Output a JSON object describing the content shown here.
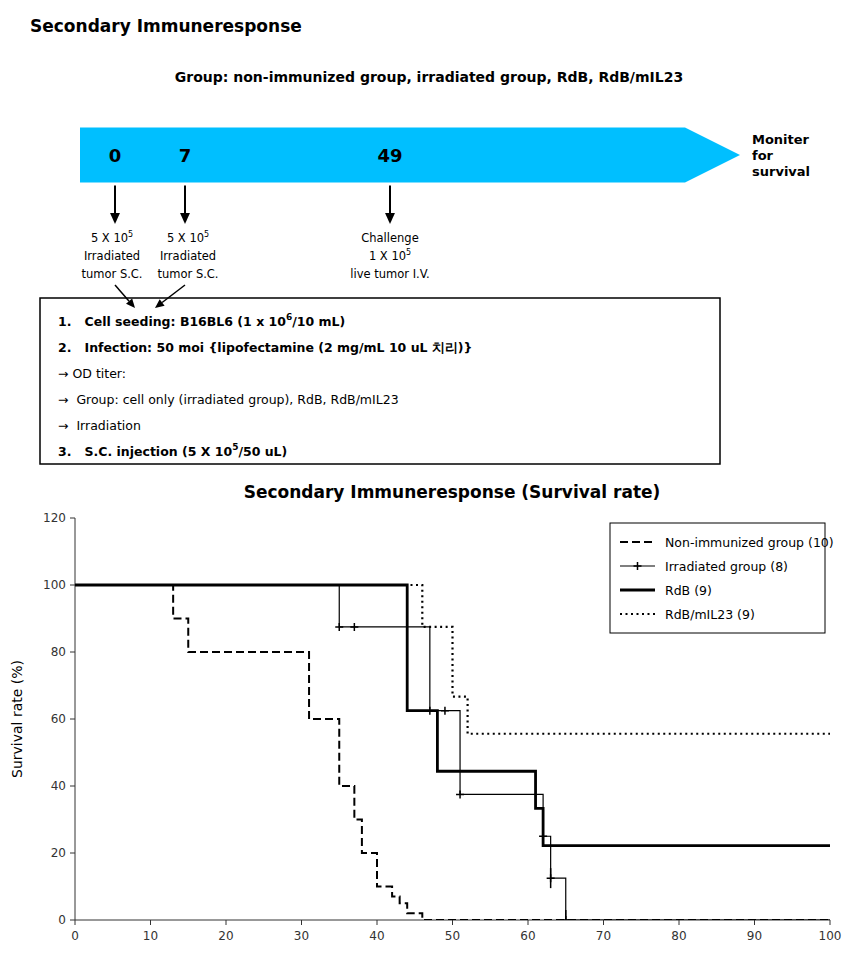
{
  "chart_data": {
    "type": "step",
    "title": "Secondary Immuneresponse (Survival rate)",
    "y_label": "Survival rate (%)",
    "color": "#00BFFF",
    "xlim": [
      0,
      100
    ],
    "ylim": [
      0,
      120
    ],
    "xticks": [
      0,
      10,
      20,
      30,
      40,
      50,
      60,
      70,
      80,
      90,
      100
    ],
    "yticks": [
      0,
      20,
      40,
      60,
      80,
      100,
      120
    ],
    "grid": false,
    "legend": "upper right",
    "series": [
      {
        "name": "Non-immunized group (10)",
        "color": "black",
        "line_style": "dashed",
        "x": [
          0,
          13,
          15,
          17,
          31,
          35,
          37,
          38,
          40,
          42,
          43,
          44,
          46,
          48,
          50,
          100
        ],
        "values": [
          100,
          90,
          80,
          80,
          60,
          40,
          30,
          20,
          10,
          7,
          5,
          2,
          0,
          0,
          0,
          0
        ]
      },
      {
        "name": "Irradiated group (8)",
        "color": "black",
        "line_style": "solid",
        "marker": "plus",
        "x": [
          0,
          35,
          37,
          47,
          49,
          51,
          62,
          63,
          65,
          100
        ],
        "values": [
          100,
          87.5,
          87.5,
          62.5,
          62.5,
          37.5,
          25,
          12.5,
          0,
          0
        ],
        "marker_x": [
          35,
          37,
          47,
          49,
          51,
          62,
          63,
          65
        ],
        "marker_values": [
          87.5,
          87.5,
          62.5,
          62.5,
          37.5,
          25,
          12.5,
          0
        ],
        "censor_x": [
          62,
          63,
          65
        ],
        "censor_values": [
          25,
          12.5,
          0
        ]
      },
      {
        "name": "RdB (9)",
        "color": "black",
        "line_style": "solid",
        "x": [
          0,
          44,
          48,
          50,
          61,
          62,
          65,
          100
        ],
        "values": [
          100,
          62.5,
          44.4,
          44.4,
          33.3,
          22.2,
          22.2,
          22.2
        ]
      },
      {
        "name": "RdB/mIL23 (9)",
        "color": "black",
        "line_style": "dotted",
        "x": [
          0,
          46,
          50,
          52,
          100
        ],
        "values": [
          100,
          87.5,
          66.7,
          55.6,
          55.6
        ]
      }
    ],
    "annotations": [
      [
        [
          "Secondary Immuneresponse"
        ]
      ],
      [
        [
          "Group: non-immunized group, irradiated group, RdB, RdB/mIL23"
        ]
      ],
      [
        [
          "0"
        ]
      ],
      [
        [
          "7"
        ]
      ],
      [
        [
          "49"
        ]
      ],
      [
        [
          "Moniter"
        ],
        [
          "for"
        ],
        [
          "survival"
        ]
      ],
      [
        [
          "5 X 10",
          "5"
        ],
        [
          "Irradiated"
        ],
        [
          "tumor S.C."
        ]
      ],
      [
        [
          "5 X 10",
          "5"
        ],
        [
          "Irradiated"
        ],
        [
          "tumor S.C."
        ]
      ],
      [
        [
          "Challenge"
        ],
        [
          "1 X 10",
          "5"
        ],
        [
          "live tumor I.V."
        ]
      ],
      [
        [
          "1.   Cell seeding: B16BL6 (1 x 10",
          "6",
          "/10 mL)"
        ],
        [
          "2.   Infection: 50 moi {lipofectamine (2 mg/mL 10 uL 치리)}"
        ],
        [
          "→ OD titer:"
        ],
        [
          "→  Group: cell only (irradiated group), RdB, RdB/mIL23"
        ],
        [
          "→  Irradiation"
        ],
        [
          "3.   S.C. injection (5 X 10",
          "5",
          "/50 uL)"
        ]
      ]
    ]
  }
}
